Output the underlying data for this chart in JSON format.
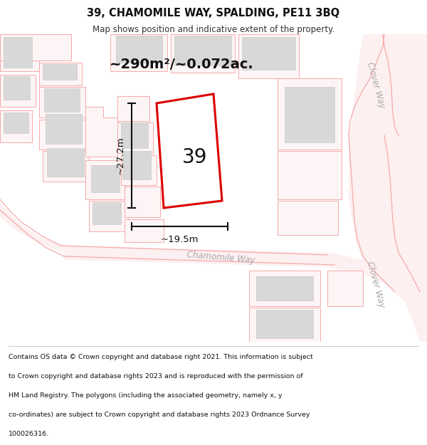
{
  "title_line1": "39, CHAMOMILE WAY, SPALDING, PE11 3BQ",
  "title_line2": "Map shows position and indicative extent of the property.",
  "area_text": "~290m²/~0.072ac.",
  "label_number": "39",
  "dim_vertical": "~27.2m",
  "dim_horizontal": "~19.5m",
  "street_chamomile": "Chamomile Way",
  "street_clover_top": "Clover Way",
  "street_clover_bot": "Clover Way",
  "footer_lines": [
    "Contains OS data © Crown copyright and database right 2021. This information is subject",
    "to Crown copyright and database rights 2023 and is reproduced with the permission of",
    "HM Land Registry. The polygons (including the associated geometry, namely x, y",
    "co-ordinates) are subject to Crown copyright and database rights 2023 Ordnance Survey",
    "100026316."
  ],
  "map_bg": "#ffffff",
  "building_fill": "#d8d8d8",
  "building_edge": "#cccccc",
  "plot_line_color": "#f5aaaa",
  "red_plot_color": "#dd0000",
  "dim_color": "#111111",
  "label_color": "#111111",
  "area_color": "#111111",
  "street_color": "#aaaaaa",
  "footer_color": "#111111",
  "title_color": "#111111",
  "subtitle_color": "#333333"
}
